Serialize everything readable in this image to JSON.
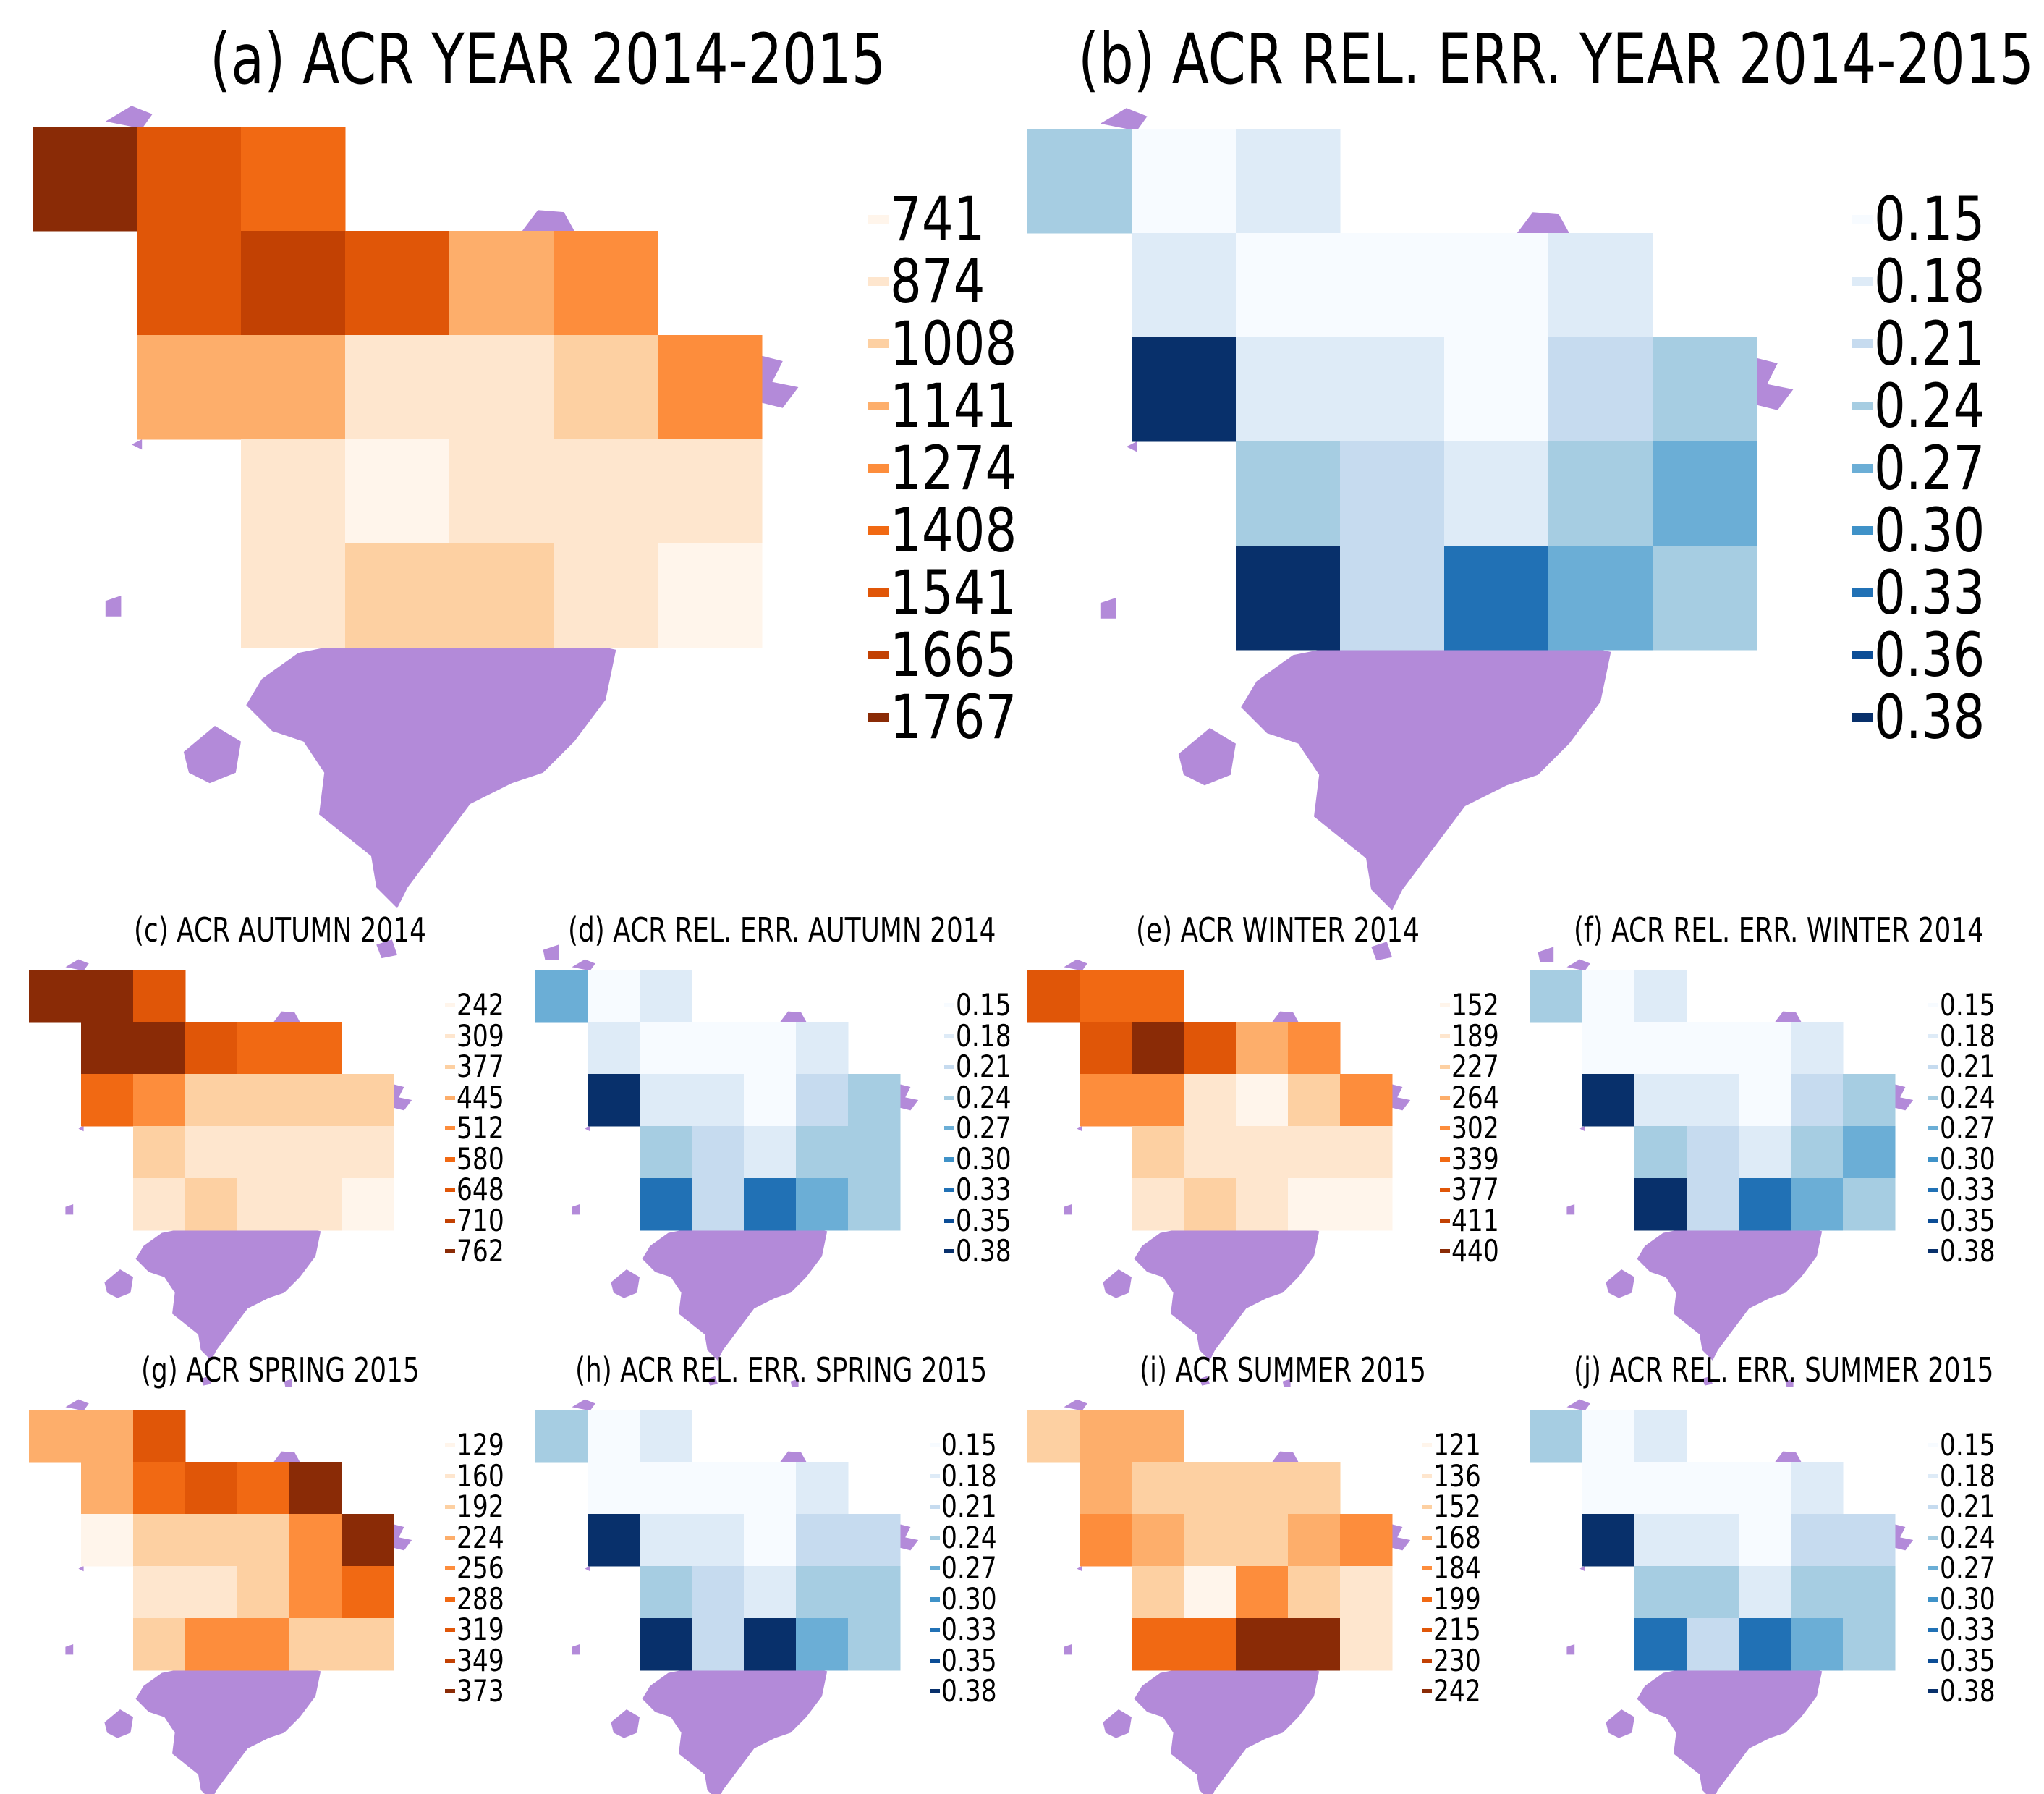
{
  "colors": {
    "land": "#b38ad9",
    "orange_scale": [
      "#fff5eb",
      "#fee6ce",
      "#fdd0a2",
      "#fdae6b",
      "#fd8d3c",
      "#f16913",
      "#e05608",
      "#c24103",
      "#8a2b06"
    ],
    "blue_scale": [
      "#f7fbff",
      "#deebf7",
      "#c6dbef",
      "#a6cde2",
      "#6baed6",
      "#3f92c8",
      "#2171b5",
      "#0b4d96",
      "#08306b"
    ]
  },
  "panels": [
    {
      "id": "a",
      "title": "(a) ACR YEAR 2014-2015",
      "palette": "orange_scale",
      "legend": [
        "741",
        "874",
        "1008",
        "1141",
        "1274",
        "1408",
        "1541",
        "1665",
        "1767"
      ],
      "grid": [
        [
          8,
          6,
          5,
          -1,
          -1,
          -1,
          -1
        ],
        [
          -1,
          6,
          7,
          6,
          3,
          4,
          -1
        ],
        [
          -1,
          3,
          3,
          1,
          1,
          2,
          4
        ],
        [
          -1,
          -1,
          1,
          0,
          1,
          1,
          1
        ],
        [
          -1,
          -1,
          1,
          2,
          2,
          1,
          0
        ]
      ]
    },
    {
      "id": "b",
      "title": "(b) ACR REL. ERR. YEAR 2014-2015",
      "palette": "blue_scale",
      "legend": [
        "0.15",
        "0.18",
        "0.21",
        "0.24",
        "0.27",
        "0.30",
        "0.33",
        "0.36",
        "0.38"
      ],
      "grid": [
        [
          3,
          0,
          1,
          -1,
          -1,
          -1,
          -1
        ],
        [
          -1,
          1,
          0,
          0,
          0,
          1,
          -1
        ],
        [
          -1,
          8,
          1,
          1,
          0,
          2,
          3
        ],
        [
          -1,
          -1,
          3,
          2,
          1,
          3,
          4
        ],
        [
          -1,
          -1,
          8,
          2,
          6,
          4,
          3
        ]
      ]
    },
    {
      "id": "c",
      "title": "(c) ACR AUTUMN 2014",
      "palette": "orange_scale",
      "legend": [
        "242",
        "309",
        "377",
        "445",
        "512",
        "580",
        "648",
        "710",
        "762"
      ],
      "grid": [
        [
          8,
          8,
          6,
          -1,
          -1,
          -1,
          -1
        ],
        [
          -1,
          8,
          8,
          6,
          5,
          5,
          -1
        ],
        [
          -1,
          5,
          4,
          2,
          2,
          2,
          2
        ],
        [
          -1,
          -1,
          2,
          1,
          1,
          1,
          1
        ],
        [
          -1,
          -1,
          1,
          2,
          1,
          1,
          0
        ]
      ]
    },
    {
      "id": "d",
      "title": "(d) ACR REL. ERR. AUTUMN 2014",
      "palette": "blue_scale",
      "legend": [
        "0.15",
        "0.18",
        "0.21",
        "0.24",
        "0.27",
        "0.30",
        "0.33",
        "0.35",
        "0.38"
      ],
      "grid": [
        [
          4,
          0,
          1,
          -1,
          -1,
          -1,
          -1
        ],
        [
          -1,
          1,
          0,
          0,
          0,
          1,
          -1
        ],
        [
          -1,
          8,
          1,
          1,
          0,
          2,
          3
        ],
        [
          -1,
          -1,
          3,
          2,
          1,
          3,
          3
        ],
        [
          -1,
          -1,
          6,
          2,
          6,
          4,
          3
        ]
      ]
    },
    {
      "id": "e",
      "title": "(e) ACR WINTER 2014",
      "palette": "orange_scale",
      "legend": [
        "152",
        "189",
        "227",
        "264",
        "302",
        "339",
        "377",
        "411",
        "440"
      ],
      "grid": [
        [
          6,
          5,
          5,
          -1,
          -1,
          -1,
          -1
        ],
        [
          -1,
          6,
          8,
          6,
          3,
          4,
          -1
        ],
        [
          -1,
          4,
          4,
          1,
          0,
          2,
          4
        ],
        [
          -1,
          -1,
          2,
          1,
          1,
          1,
          1
        ],
        [
          -1,
          -1,
          1,
          2,
          1,
          0,
          0
        ]
      ]
    },
    {
      "id": "f",
      "title": "(f) ACR REL. ERR. WINTER 2014",
      "palette": "blue_scale",
      "legend": [
        "0.15",
        "0.18",
        "0.21",
        "0.24",
        "0.27",
        "0.30",
        "0.33",
        "0.35",
        "0.38"
      ],
      "grid": [
        [
          3,
          0,
          1,
          -1,
          -1,
          -1,
          -1
        ],
        [
          -1,
          0,
          0,
          0,
          0,
          1,
          -1
        ],
        [
          -1,
          8,
          1,
          1,
          0,
          2,
          3
        ],
        [
          -1,
          -1,
          3,
          2,
          1,
          3,
          4
        ],
        [
          -1,
          -1,
          8,
          2,
          6,
          4,
          3
        ]
      ]
    },
    {
      "id": "g",
      "title": "(g) ACR SPRING 2015",
      "palette": "orange_scale",
      "legend": [
        "129",
        "160",
        "192",
        "224",
        "256",
        "288",
        "319",
        "349",
        "373"
      ],
      "grid": [
        [
          3,
          3,
          6,
          -1,
          -1,
          -1,
          -1
        ],
        [
          -1,
          3,
          5,
          6,
          5,
          8,
          -1
        ],
        [
          -1,
          0,
          2,
          2,
          2,
          4,
          8
        ],
        [
          -1,
          -1,
          1,
          1,
          2,
          4,
          5
        ],
        [
          -1,
          -1,
          2,
          4,
          4,
          2,
          2
        ]
      ]
    },
    {
      "id": "h",
      "title": "(h) ACR REL. ERR. SPRING 2015",
      "palette": "blue_scale",
      "legend": [
        "0.15",
        "0.18",
        "0.21",
        "0.24",
        "0.27",
        "0.30",
        "0.33",
        "0.35",
        "0.38"
      ],
      "grid": [
        [
          3,
          0,
          1,
          -1,
          -1,
          -1,
          -1
        ],
        [
          -1,
          0,
          0,
          0,
          0,
          1,
          -1
        ],
        [
          -1,
          8,
          1,
          1,
          0,
          2,
          2
        ],
        [
          -1,
          -1,
          3,
          2,
          1,
          3,
          3
        ],
        [
          -1,
          -1,
          8,
          2,
          8,
          4,
          3
        ]
      ]
    },
    {
      "id": "i",
      "title": "(i) ACR SUMMER 2015",
      "palette": "orange_scale",
      "legend": [
        "121",
        "136",
        "152",
        "168",
        "184",
        "199",
        "215",
        "230",
        "242"
      ],
      "grid": [
        [
          2,
          3,
          3,
          -1,
          -1,
          -1,
          -1
        ],
        [
          -1,
          3,
          2,
          2,
          2,
          2,
          -1
        ],
        [
          -1,
          4,
          3,
          2,
          2,
          3,
          4
        ],
        [
          -1,
          -1,
          2,
          0,
          4,
          2,
          1
        ],
        [
          -1,
          -1,
          5,
          5,
          8,
          8,
          1
        ]
      ]
    },
    {
      "id": "j",
      "title": "(j) ACR REL. ERR. SUMMER 2015",
      "palette": "blue_scale",
      "legend": [
        "0.15",
        "0.18",
        "0.21",
        "0.24",
        "0.27",
        "0.30",
        "0.33",
        "0.35",
        "0.38"
      ],
      "grid": [
        [
          3,
          0,
          1,
          -1,
          -1,
          -1,
          -1
        ],
        [
          -1,
          0,
          0,
          0,
          0,
          1,
          -1
        ],
        [
          -1,
          8,
          1,
          1,
          0,
          2,
          2
        ],
        [
          -1,
          -1,
          3,
          3,
          1,
          3,
          3
        ],
        [
          -1,
          -1,
          6,
          2,
          6,
          4,
          3
        ]
      ]
    }
  ]
}
